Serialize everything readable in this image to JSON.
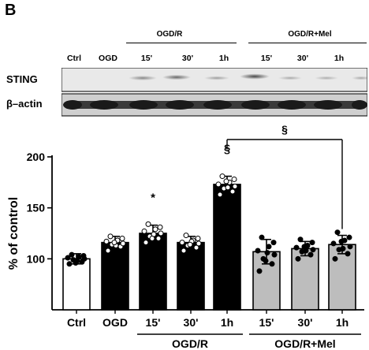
{
  "panel_label": "B",
  "blot": {
    "group_labels": [
      "OGD/R",
      "OGD/R+Mel"
    ],
    "lane_labels": [
      "Ctrl",
      "OGD",
      "15'",
      "30'",
      "1h",
      "15'",
      "30'",
      "1h"
    ],
    "rows": [
      "STING",
      "β–actin"
    ]
  },
  "chart_data": {
    "type": "bar",
    "categories": [
      "Ctrl",
      "OGD",
      "15'",
      "30'",
      "1h",
      "15'",
      "30'",
      "1h"
    ],
    "values": [
      100,
      116,
      125,
      116,
      173,
      107,
      110,
      114
    ],
    "errors": [
      5,
      6,
      8,
      6,
      8,
      12,
      7,
      9
    ],
    "bar_fill": [
      "#ffffff",
      "#000000",
      "#000000",
      "#000000",
      "#000000",
      "#bdbdbd",
      "#bdbdbd",
      "#bdbdbd"
    ],
    "point_fill": [
      "#000000",
      "#ffffff",
      "#ffffff",
      "#ffffff",
      "#ffffff",
      "#000000",
      "#000000",
      "#000000"
    ],
    "points": [
      [
        95,
        97,
        99,
        100,
        101,
        102,
        103,
        104,
        98,
        96
      ],
      [
        108,
        112,
        114,
        115,
        117,
        118,
        120,
        122,
        113,
        116
      ],
      [
        116,
        120,
        122,
        125,
        127,
        129,
        131,
        134,
        124,
        120
      ],
      [
        108,
        111,
        113,
        115,
        116,
        118,
        120,
        123,
        117,
        114
      ],
      [
        163,
        166,
        169,
        171,
        173,
        175,
        178,
        181,
        170,
        176
      ],
      [
        88,
        95,
        100,
        104,
        108,
        112,
        116,
        121,
        106,
        98
      ],
      [
        100,
        104,
        107,
        109,
        111,
        113,
        116,
        119,
        108,
        112
      ],
      [
        100,
        105,
        109,
        112,
        115,
        118,
        121,
        126,
        110,
        117
      ]
    ],
    "ylabel": "% of control",
    "ylim": [
      50,
      200
    ],
    "yticks": [
      100,
      150,
      200
    ],
    "annotations": [
      {
        "text": "*",
        "category_index": 2
      },
      {
        "text": "§",
        "category_index": 4
      }
    ],
    "comparison": {
      "text": "§",
      "from": 4,
      "to": 7
    },
    "group_labels": [
      "OGD/R",
      "OGD/R+Mel"
    ]
  }
}
